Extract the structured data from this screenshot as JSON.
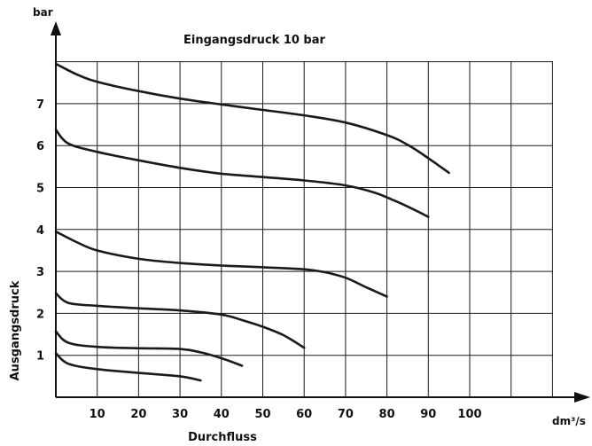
{
  "chart_data": {
    "type": "line",
    "title": "Eingangsdruck 10 bar",
    "xlabel": "Durchfluss",
    "ylabel": "Ausgangsdruck",
    "x_unit": "dm³/s",
    "y_unit": "bar",
    "xlim": [
      0,
      130
    ],
    "ylim": [
      0,
      8
    ],
    "x_grid_step": 10,
    "y_grid_step": 1,
    "grid": true,
    "x_ticks": [
      10,
      20,
      30,
      40,
      50,
      60,
      70,
      80,
      90,
      100
    ],
    "y_ticks": [
      1,
      2,
      3,
      4,
      5,
      6,
      7
    ],
    "series": [
      {
        "x": [
          0,
          5,
          10,
          20,
          30,
          40,
          50,
          60,
          70,
          80,
          85,
          90,
          95
        ],
        "y": [
          7.95,
          7.7,
          7.52,
          7.3,
          7.12,
          6.98,
          6.85,
          6.72,
          6.55,
          6.25,
          6.02,
          5.7,
          5.35
        ]
      },
      {
        "x": [
          0,
          3,
          10,
          20,
          30,
          40,
          50,
          60,
          70,
          77,
          82,
          86,
          90
        ],
        "y": [
          6.38,
          6.05,
          5.85,
          5.65,
          5.47,
          5.33,
          5.25,
          5.17,
          5.05,
          4.88,
          4.68,
          4.5,
          4.3
        ]
      },
      {
        "x": [
          0,
          5,
          10,
          20,
          30,
          40,
          50,
          60,
          65,
          70,
          75,
          80
        ],
        "y": [
          3.95,
          3.7,
          3.5,
          3.3,
          3.2,
          3.14,
          3.1,
          3.05,
          2.98,
          2.85,
          2.62,
          2.4
        ]
      },
      {
        "x": [
          0,
          3,
          10,
          20,
          30,
          40,
          45,
          50,
          55,
          60
        ],
        "y": [
          2.48,
          2.25,
          2.18,
          2.12,
          2.07,
          1.97,
          1.84,
          1.68,
          1.48,
          1.18
        ]
      },
      {
        "x": [
          0,
          3,
          10,
          20,
          30,
          35,
          40,
          45
        ],
        "y": [
          1.57,
          1.3,
          1.2,
          1.17,
          1.15,
          1.07,
          0.93,
          0.75
        ]
      },
      {
        "x": [
          0,
          3,
          10,
          20,
          30,
          35
        ],
        "y": [
          1.05,
          0.8,
          0.67,
          0.58,
          0.5,
          0.4
        ]
      }
    ]
  }
}
